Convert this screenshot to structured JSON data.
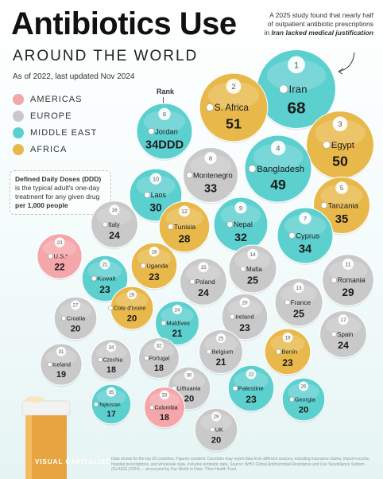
{
  "header": {
    "title": "Antibiotics Use",
    "subtitle": "AROUND THE WORLD",
    "as_of": "As of 2022, last updated Nov 2024",
    "note_pre": "A 2025 study found that nearly half of outpatient antibiotic prescriptions in ",
    "note_bold": "Iran lacked medical justification",
    "rank_label": "Rank"
  },
  "legend": [
    {
      "label": "AMERICAS",
      "color": "#f4a6a9"
    },
    {
      "label": "EUROPE",
      "color": "#c9c9c9"
    },
    {
      "label": "MIDDLE EAST",
      "color": "#5ccfcf"
    },
    {
      "label": "AFRICA",
      "color": "#e8b84a"
    }
  ],
  "ddd_note": {
    "bold": "Defined Daily Doses (DDD)",
    "text_a": " is the typical adult's one-day treatment for any given drug ",
    "bold2": "per 1,000 people"
  },
  "footer": "Data shows for the top 35 countries. Figures rounded. Countries may report data from different sources, including insurance claims, import records, hospital prescriptions, and wholesale data. Includes antibiotic data. Source: WHO Global Antimicrobial Resistance and Use Surveillance System (GLASS) (2024) — processed by Our World in Data. *One Health Trust",
  "logo": "VISUAL CAPITALIST",
  "chart_data": {
    "type": "bubble",
    "title": "Antibiotics Use",
    "unit": "DDD",
    "colors": {
      "Americas": "#f4a6a9",
      "Europe": "#c9c9c9",
      "Middle East": "#5ccfcf",
      "Africa": "#e8b84a"
    },
    "points": [
      {
        "rank": 1,
        "country": "Iran",
        "value": 68,
        "region": "Middle East"
      },
      {
        "rank": 2,
        "country": "S. Africa",
        "value": 51,
        "region": "Africa"
      },
      {
        "rank": 3,
        "country": "Egypt",
        "value": 50,
        "region": "Africa"
      },
      {
        "rank": 4,
        "country": "Bangladesh",
        "value": 49,
        "region": "Middle East"
      },
      {
        "rank": 5,
        "country": "Tanzania",
        "value": 35,
        "region": "Africa"
      },
      {
        "rank": 6,
        "country": "Jordan",
        "value": 34,
        "value_label": "34DDD",
        "region": "Middle East"
      },
      {
        "rank": 7,
        "country": "Cyprus",
        "value": 34,
        "region": "Middle East"
      },
      {
        "rank": 8,
        "country": "Montenegro",
        "value": 33,
        "region": "Europe"
      },
      {
        "rank": 9,
        "country": "Nepal",
        "value": 32,
        "region": "Middle East"
      },
      {
        "rank": 10,
        "country": "Laos",
        "value": 30,
        "region": "Middle East"
      },
      {
        "rank": 11,
        "country": "Romania",
        "value": 29,
        "region": "Europe"
      },
      {
        "rank": 12,
        "country": "Tunisia",
        "value": 28,
        "region": "Africa"
      },
      {
        "rank": 13,
        "country": "France",
        "value": 25,
        "region": "Europe"
      },
      {
        "rank": 14,
        "country": "Malta",
        "value": 25,
        "region": "Europe"
      },
      {
        "rank": 15,
        "country": "Poland",
        "value": 24,
        "region": "Europe"
      },
      {
        "rank": 16,
        "country": "Italy",
        "value": 24,
        "region": "Europe"
      },
      {
        "rank": 17,
        "country": "Spain",
        "value": 24,
        "region": "Europe"
      },
      {
        "rank": 18,
        "country": "Uganda",
        "value": 23,
        "region": "Africa"
      },
      {
        "rank": 19,
        "country": "Benin",
        "value": 23,
        "region": "Africa"
      },
      {
        "rank": 20,
        "country": "Ireland",
        "value": 23,
        "region": "Europe"
      },
      {
        "rank": 21,
        "country": "Kuwait",
        "value": 23,
        "region": "Middle East"
      },
      {
        "rank": 22,
        "country": "Palestine",
        "value": 23,
        "region": "Middle East"
      },
      {
        "rank": 23,
        "country": "U.S.*",
        "value": 22,
        "region": "Americas"
      },
      {
        "rank": 24,
        "country": "Maldives",
        "value": 21,
        "region": "Middle East"
      },
      {
        "rank": 25,
        "country": "Belgium",
        "value": 21,
        "region": "Europe"
      },
      {
        "rank": 26,
        "country": "Georgia",
        "value": 20,
        "region": "Middle East"
      },
      {
        "rank": 27,
        "country": "Croatia",
        "value": 20,
        "region": "Europe"
      },
      {
        "rank": 28,
        "country": "Cote d'Ivoire",
        "value": 20,
        "region": "Africa"
      },
      {
        "rank": 29,
        "country": "UK",
        "value": 20,
        "region": "Europe"
      },
      {
        "rank": 30,
        "country": "Lithuania",
        "value": 20,
        "region": "Europe"
      },
      {
        "rank": 31,
        "country": "Iceland",
        "value": 19,
        "region": "Europe"
      },
      {
        "rank": 32,
        "country": "Portugal",
        "value": 18,
        "region": "Europe"
      },
      {
        "rank": 33,
        "country": "Colombia",
        "value": 18,
        "region": "Americas"
      },
      {
        "rank": 34,
        "country": "Czechia",
        "value": 18,
        "region": "Europe"
      },
      {
        "rank": 35,
        "country": "Tajikistan",
        "value": 17,
        "region": "Middle East"
      }
    ]
  }
}
